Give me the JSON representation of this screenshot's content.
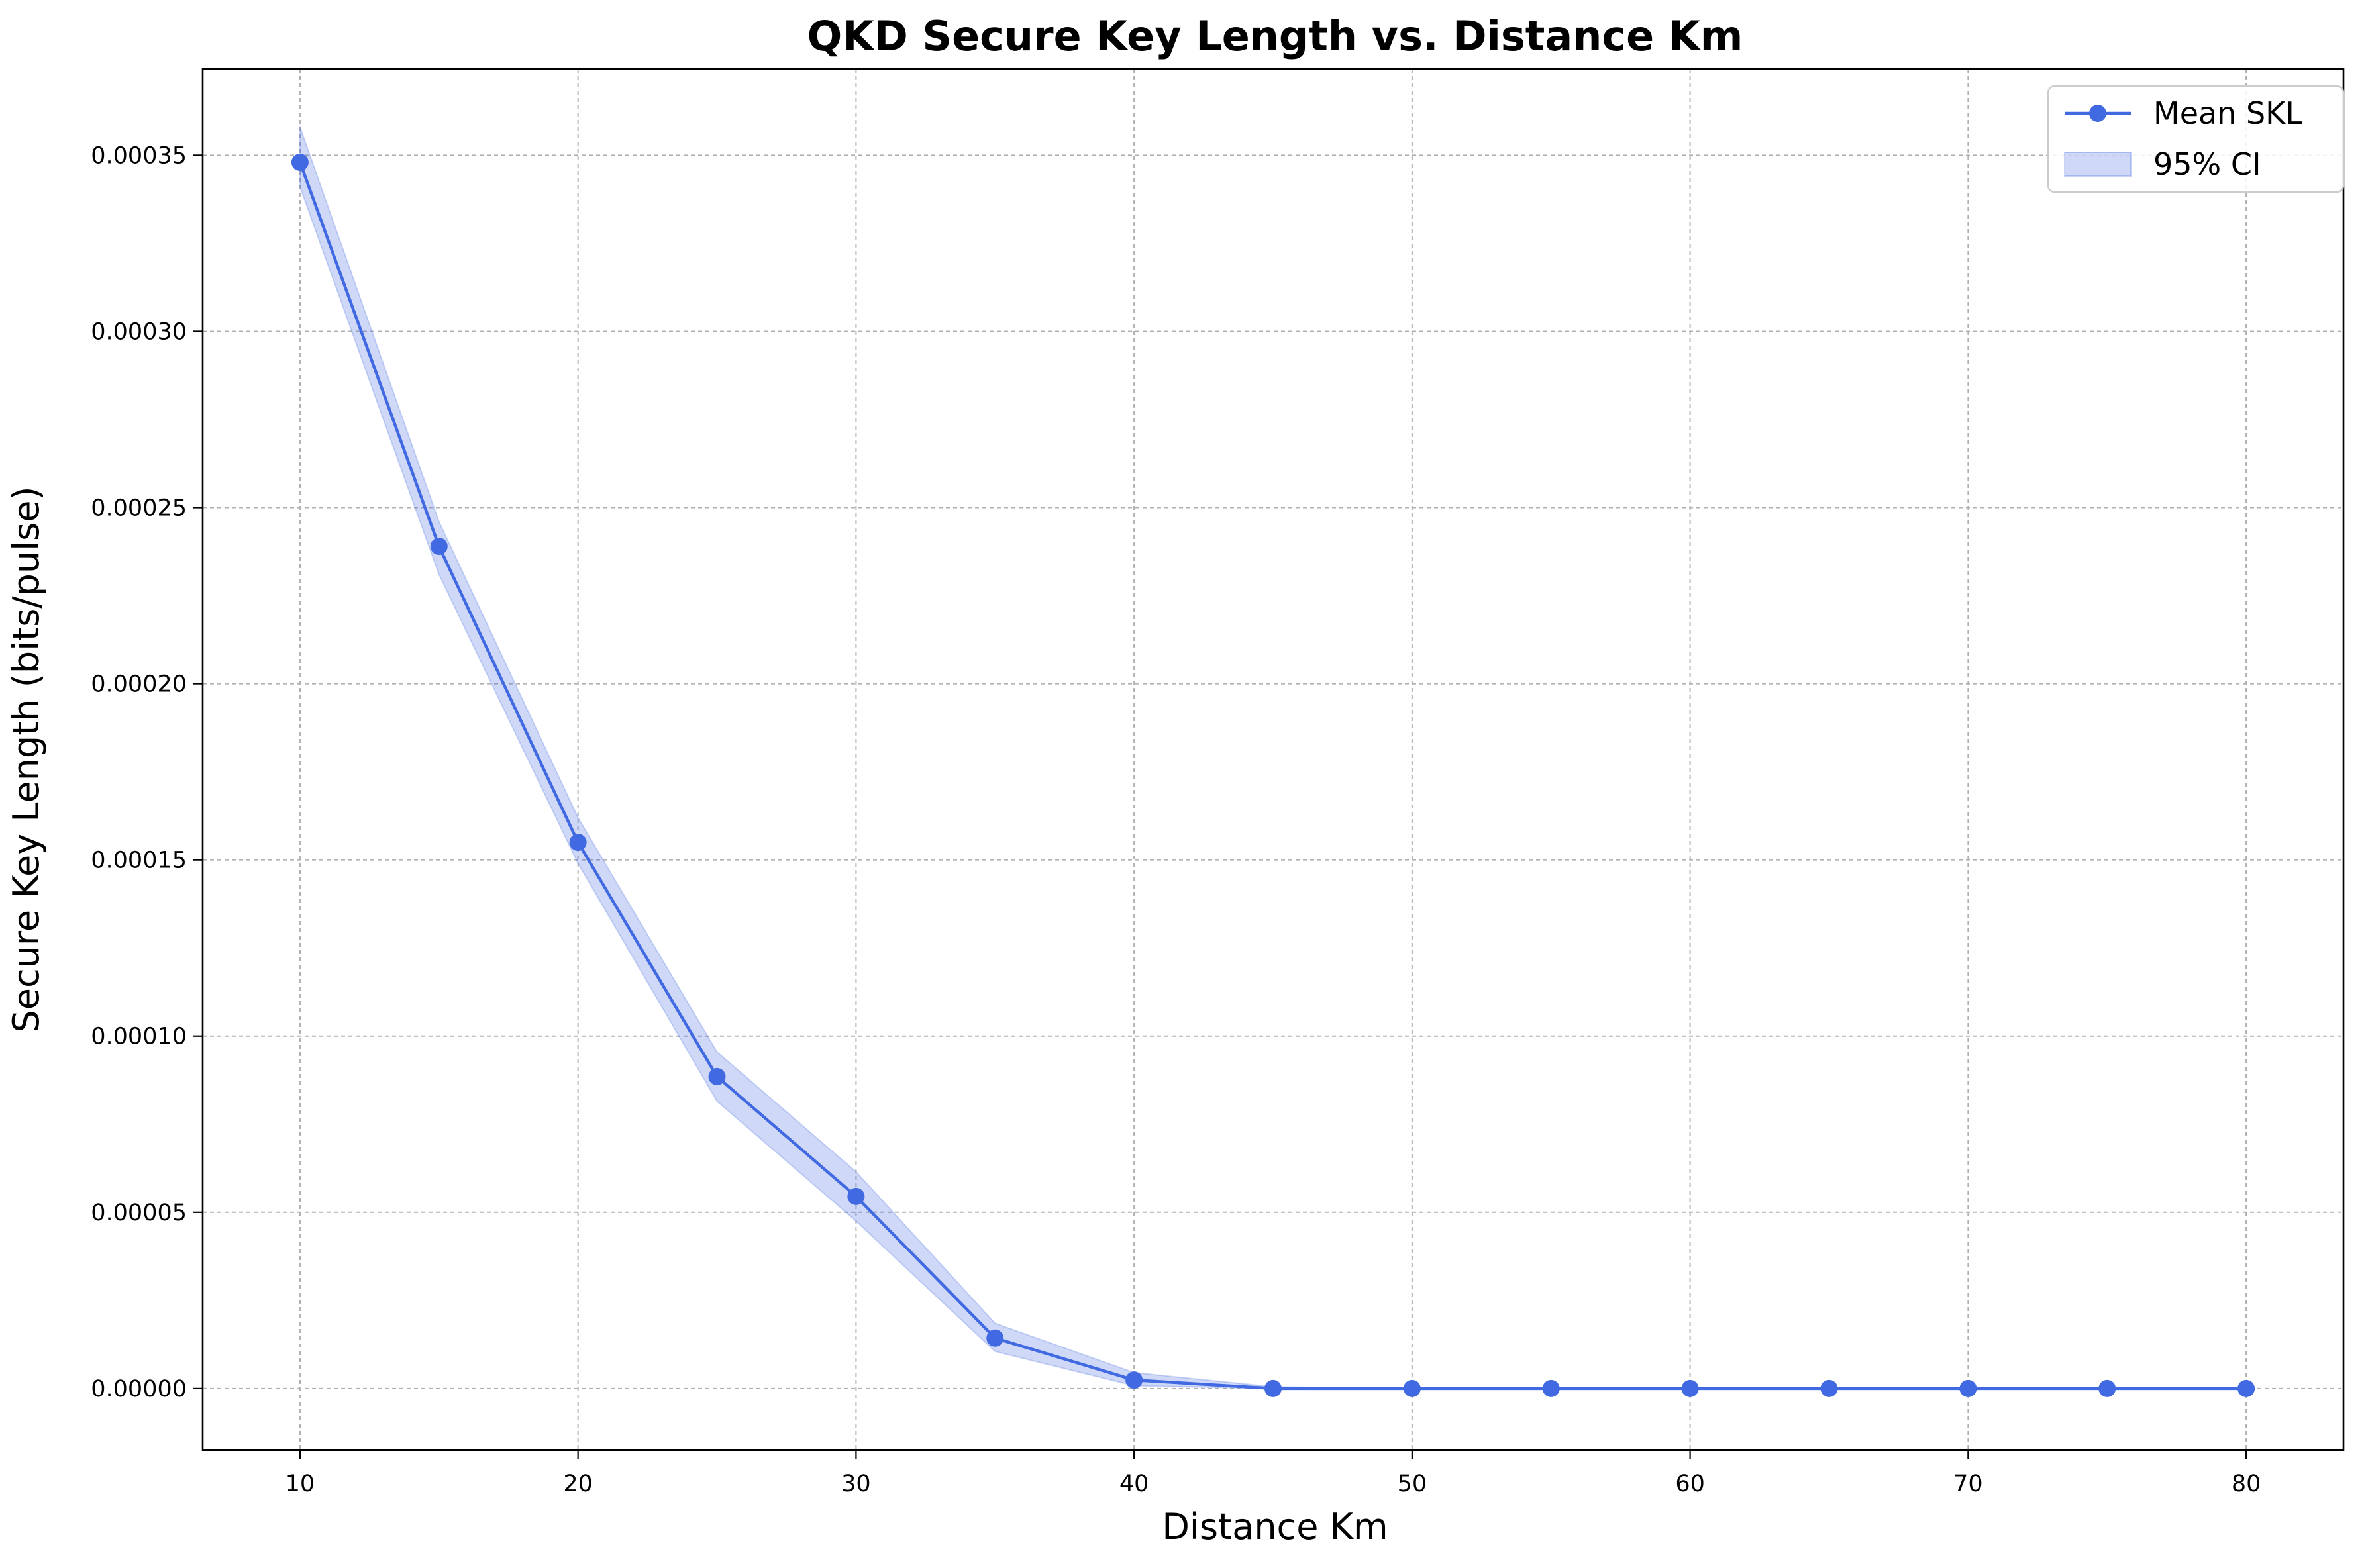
{
  "chart_data": {
    "type": "line",
    "title": "QKD Secure Key Length vs. Distance Km",
    "xlabel": "Distance Km",
    "ylabel": "Secure Key Length (bits/pulse)",
    "xlim": [
      6.5,
      83.5
    ],
    "ylim": [
      -1.75e-05,
      0.0003745
    ],
    "x_ticks": [
      10,
      20,
      30,
      40,
      50,
      60,
      70,
      80
    ],
    "x_tick_labels": [
      "10",
      "20",
      "30",
      "40",
      "50",
      "60",
      "70",
      "80"
    ],
    "y_ticks": [
      0,
      5e-05,
      0.0001,
      0.00015,
      0.0002,
      0.00025,
      0.0003,
      0.00035
    ],
    "y_tick_labels": [
      "0.00000",
      "0.00005",
      "0.00010",
      "0.00015",
      "0.00020",
      "0.00025",
      "0.00030",
      "0.00035"
    ],
    "grid": true,
    "legend_position": "top-right",
    "x": [
      10,
      15,
      20,
      25,
      30,
      35,
      40,
      45,
      50,
      55,
      60,
      65,
      70,
      75,
      80
    ],
    "series": [
      {
        "name": "Mean SKL",
        "kind": "line-marker",
        "color": "#4169e1",
        "values": [
          0.000348,
          0.000239,
          0.000155,
          8.85e-05,
          5.45e-05,
          1.43e-05,
          2.4e-06,
          0,
          0,
          0,
          0,
          0,
          0,
          0,
          0
        ]
      },
      {
        "name": "95% CI",
        "kind": "band",
        "color": "#4169e1",
        "lower": [
          0.000341,
          0.000231,
          0.000149,
          8.15e-05,
          4.75e-05,
          1.05e-05,
          8e-07,
          0,
          0,
          0,
          0,
          0,
          0,
          0,
          0
        ],
        "upper": [
          0.000358,
          0.000246,
          0.000162,
          9.55e-05,
          6.15e-05,
          1.85e-05,
          4.5e-06,
          5e-07,
          0,
          0,
          0,
          0,
          0,
          0,
          0
        ]
      }
    ]
  }
}
